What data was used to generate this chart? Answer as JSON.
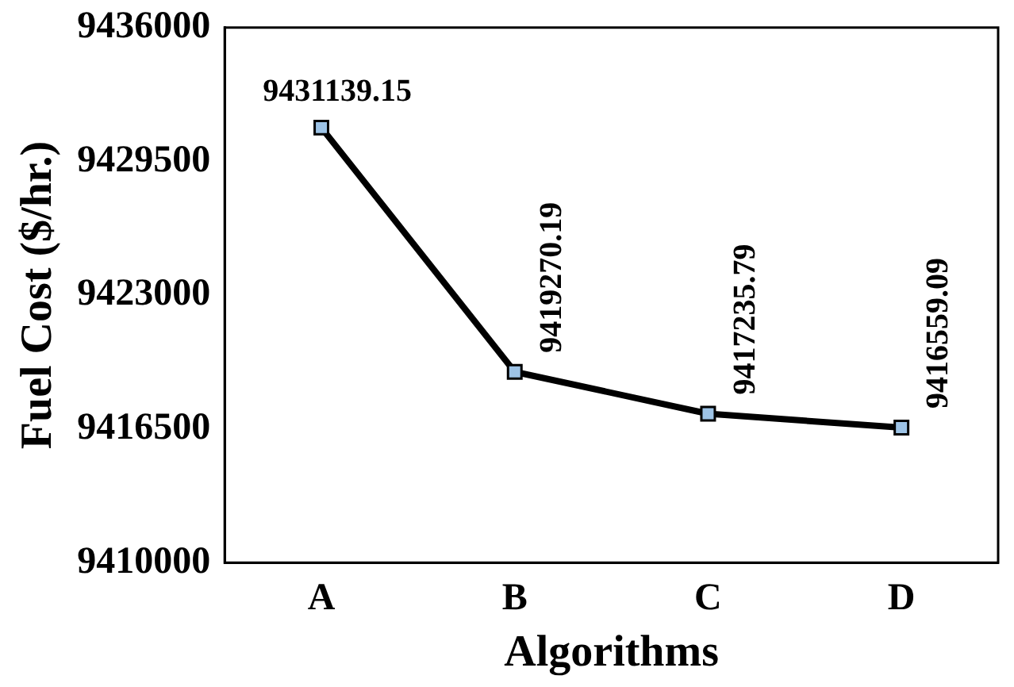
{
  "chart_data": {
    "type": "line",
    "xlabel": "Algorithms",
    "ylabel": "Fuel Cost ($/hr.)",
    "categories": [
      "A",
      "B",
      "C",
      "D"
    ],
    "series": [
      {
        "color": "#000000",
        "values": [
          9431139.15,
          9419270.19,
          9417235.79,
          9416559.09
        ]
      }
    ],
    "ylim": [
      9410000,
      9436000
    ],
    "yticks": [
      9410000,
      9416500,
      9423000,
      9429500,
      9436000
    ],
    "grid": false,
    "legend": false,
    "marker": "square",
    "line_style": "solid",
    "data_labels": true
  }
}
